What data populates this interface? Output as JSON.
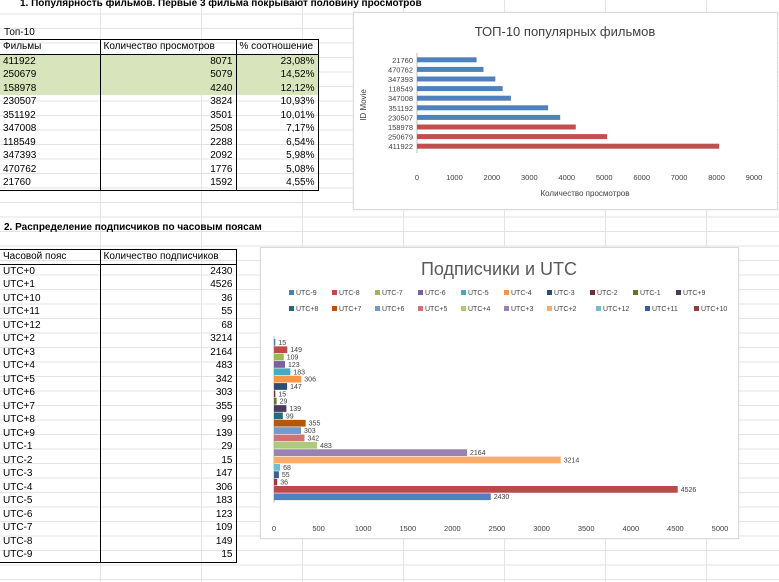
{
  "section1_title": "1. Популярность фильмов. Первые 3 фильма покрывают половину просмотров",
  "top10_label": "Топ-10",
  "movies_table": {
    "headers": [
      "Фильмы",
      "Количество просмотров",
      "% соотношение"
    ],
    "rows": [
      [
        "411922",
        "8071",
        "23,08%"
      ],
      [
        "250679",
        "5079",
        "14,52%"
      ],
      [
        "158978",
        "4240",
        "12,12%"
      ],
      [
        "230507",
        "3824",
        "10,93%"
      ],
      [
        "351192",
        "3501",
        "10,01%"
      ],
      [
        "347008",
        "2508",
        "7,17%"
      ],
      [
        "118549",
        "2288",
        "6,54%"
      ],
      [
        "347393",
        "2092",
        "5,98%"
      ],
      [
        "470762",
        "1776",
        "5,08%"
      ],
      [
        "21760",
        "1592",
        "4,55%"
      ]
    ]
  },
  "section2_title": "2. Распределение подписчиков по часовым поясам",
  "tz_table": {
    "headers": [
      "Часовой пояс",
      "Количество подписчиков"
    ],
    "rows": [
      [
        "UTC+0",
        "2430"
      ],
      [
        "UTC+1",
        "4526"
      ],
      [
        "UTC+10",
        "36"
      ],
      [
        "UTC+11",
        "55"
      ],
      [
        "UTC+12",
        "68"
      ],
      [
        "UTC+2",
        "3214"
      ],
      [
        "UTC+3",
        "2164"
      ],
      [
        "UTC+4",
        "483"
      ],
      [
        "UTC+5",
        "342"
      ],
      [
        "UTC+6",
        "303"
      ],
      [
        "UTC+7",
        "355"
      ],
      [
        "UTC+8",
        "99"
      ],
      [
        "UTC+9",
        "139"
      ],
      [
        "UTC-1",
        "29"
      ],
      [
        "UTC-2",
        "15"
      ],
      [
        "UTC-3",
        "147"
      ],
      [
        "UTC-4",
        "306"
      ],
      [
        "UTC-5",
        "183"
      ],
      [
        "UTC-6",
        "123"
      ],
      [
        "UTC-7",
        "109"
      ],
      [
        "UTC-8",
        "149"
      ],
      [
        "UTC-9",
        "15"
      ]
    ]
  },
  "chart_data": [
    {
      "type": "bar",
      "orientation": "horizontal",
      "title": "ТОП-10 популярных фильмов",
      "xlabel": "Количество просмотров",
      "ylabel": "ID Movie",
      "xlim": [
        0,
        9000
      ],
      "xticks": [
        "0",
        "1000",
        "2000",
        "3000",
        "4000",
        "5000",
        "6000",
        "7000",
        "8000",
        "9000"
      ],
      "categories": [
        "21760",
        "470762",
        "347393",
        "118549",
        "347008",
        "351192",
        "230507",
        "158978",
        "250679",
        "411922"
      ],
      "values": [
        1592,
        1776,
        2092,
        2288,
        2508,
        3501,
        3824,
        4240,
        5079,
        8071
      ],
      "colors": [
        "#4f81bd",
        "#4f81bd",
        "#4f81bd",
        "#4f81bd",
        "#4f81bd",
        "#4f81bd",
        "#4f81bd",
        "#c0504d",
        "#c0504d",
        "#c0504d"
      ],
      "grid": false
    },
    {
      "type": "bar",
      "orientation": "horizontal",
      "title": "Подписчики и UTC",
      "xlim": [
        0,
        5000
      ],
      "xticks": [
        "0",
        "500",
        "1000",
        "1500",
        "2000",
        "2500",
        "3000",
        "3500",
        "4000",
        "4500",
        "5000"
      ],
      "legend_position": "top",
      "series": [
        {
          "name": "UTC-9",
          "value": 15,
          "color": "#4a7ebb"
        },
        {
          "name": "UTC-8",
          "value": 149,
          "color": "#be4b48"
        },
        {
          "name": "UTC-7",
          "value": 109,
          "color": "#98b954"
        },
        {
          "name": "UTC-6",
          "value": 123,
          "color": "#7d60a0"
        },
        {
          "name": "UTC-5",
          "value": 183,
          "color": "#46aac4"
        },
        {
          "name": "UTC-4",
          "value": 306,
          "color": "#f79646"
        },
        {
          "name": "UTC-3",
          "value": 147,
          "color": "#2c4d75"
        },
        {
          "name": "UTC-2",
          "value": 15,
          "color": "#772c2a"
        },
        {
          "name": "UTC-1",
          "value": 29,
          "color": "#5f7530"
        },
        {
          "name": "UTC+9",
          "value": 139,
          "color": "#4b3a62"
        },
        {
          "name": "UTC+8",
          "value": 99,
          "color": "#276a7c"
        },
        {
          "name": "UTC+7",
          "value": 355,
          "color": "#b65708"
        },
        {
          "name": "UTC+6",
          "value": 303,
          "color": "#729aca"
        },
        {
          "name": "UTC+5",
          "value": 342,
          "color": "#cd7371"
        },
        {
          "name": "UTC+4",
          "value": 483,
          "color": "#afc97a"
        },
        {
          "name": "UTC+3",
          "value": 2164,
          "color": "#9983b5"
        },
        {
          "name": "UTC+2",
          "value": 3214,
          "color": "#f9ab6b"
        },
        {
          "name": "UTC+12",
          "value": 68,
          "color": "#6fbdd1"
        },
        {
          "name": "UTC+11",
          "value": 55,
          "color": "#3a5f94"
        },
        {
          "name": "UTC+10",
          "value": 36,
          "color": "#963c3a"
        },
        {
          "name": "UTC+1",
          "value": 4526,
          "color": "#b94a48"
        },
        {
          "name": "UTC+0",
          "value": 2430,
          "color": "#4f81bd"
        }
      ],
      "bar_order_top_to_bottom": [
        "UTC-9",
        "UTC-8",
        "UTC-7",
        "UTC-6",
        "UTC-5",
        "UTC-4",
        "UTC-3",
        "UTC-2",
        "UTC-1",
        "UTC+9",
        "UTC+8",
        "UTC+7",
        "UTC+6",
        "UTC+5",
        "UTC+4",
        "UTC+3",
        "UTC+2",
        "UTC+12",
        "UTC+11",
        "UTC+10",
        "UTC+1",
        "UTC+0"
      ],
      "legend_order": [
        "UTC-9",
        "UTC-8",
        "UTC-7",
        "UTC-6",
        "UTC-5",
        "UTC-4",
        "UTC-3",
        "UTC-2",
        "UTC-1",
        "UTC+9",
        "UTC+8",
        "UTC+7",
        "UTC+6",
        "UTC+5",
        "UTC+4",
        "UTC+3",
        "UTC+2",
        "UTC+12",
        "UTC+11",
        "UTC+10",
        "UTC+1",
        "UTC+0"
      ],
      "grid": false
    }
  ]
}
